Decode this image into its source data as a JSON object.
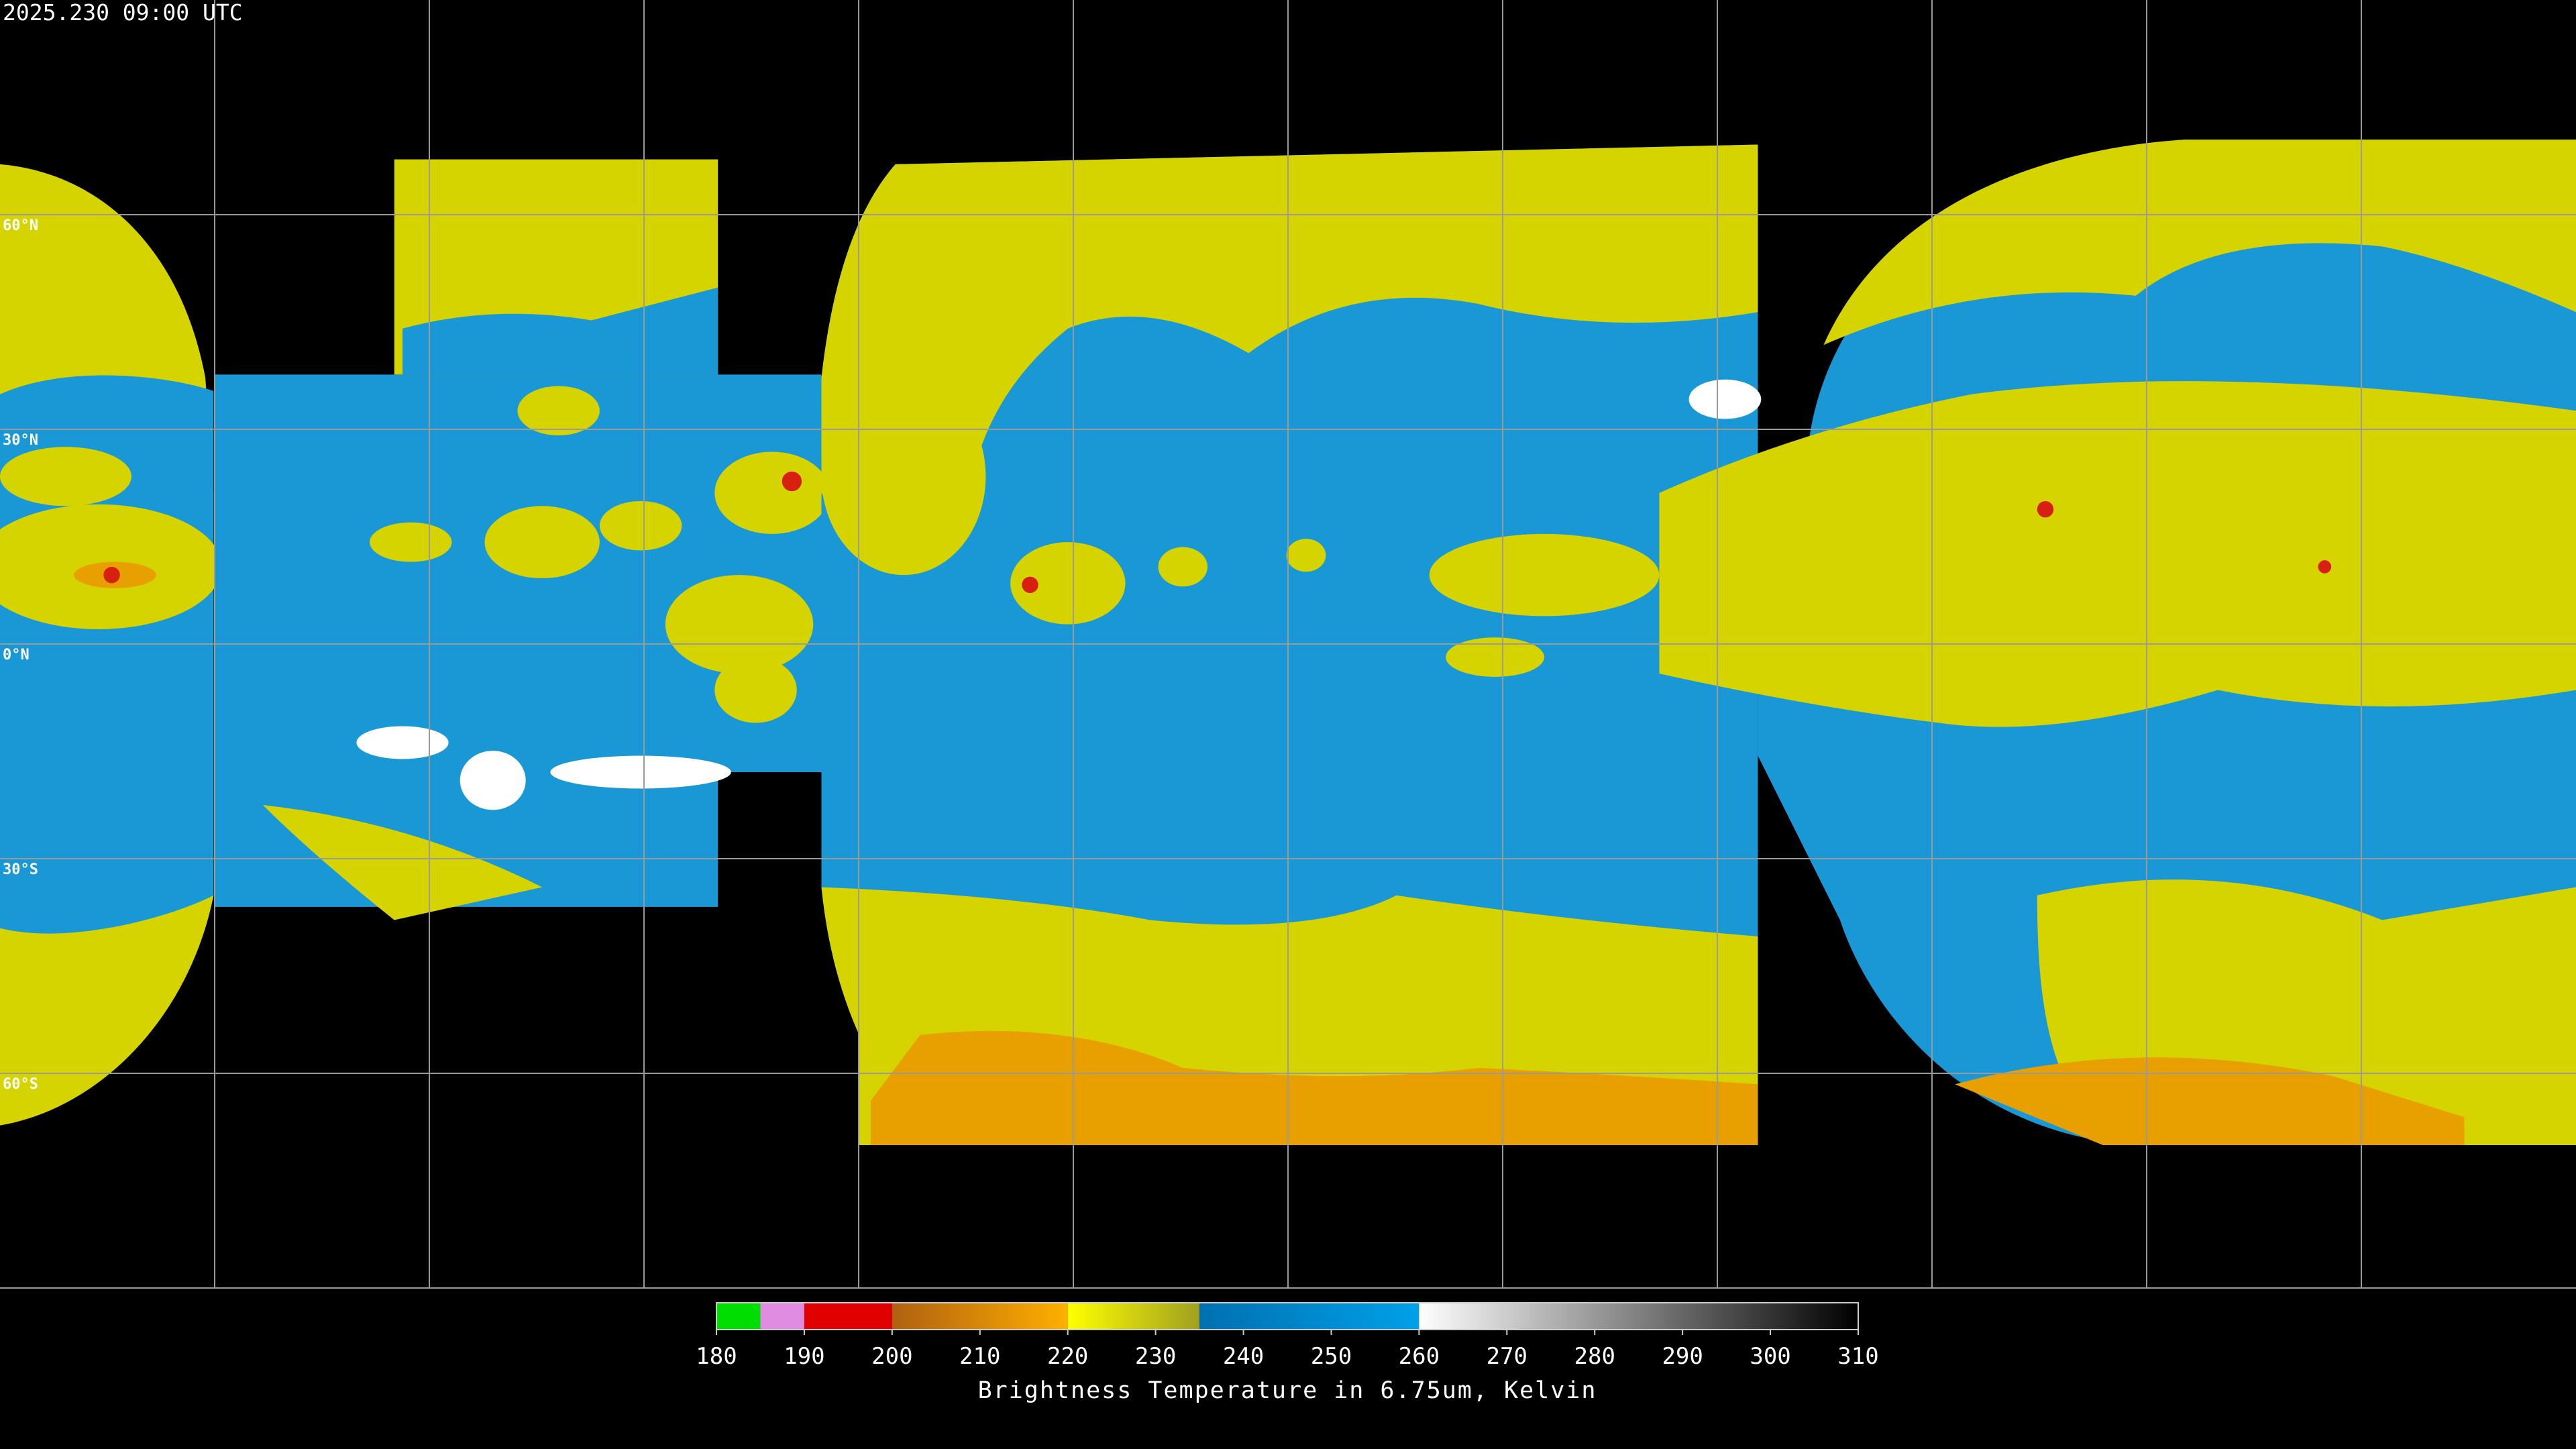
{
  "header": {
    "timestamp": "2025.230 09:00 UTC"
  },
  "map": {
    "lat_labels": [
      "60°N",
      "30°N",
      "0°N",
      "30°S",
      "60°S"
    ]
  },
  "colorbar": {
    "range": [
      180,
      310
    ],
    "ticks": [
      180,
      190,
      200,
      210,
      220,
      230,
      240,
      250,
      260,
      270,
      280,
      290,
      300,
      310
    ],
    "segments": [
      {
        "from": 180,
        "to": 185,
        "colors": [
          "#00dd00",
          "#00dd00"
        ]
      },
      {
        "from": 185,
        "to": 190,
        "colors": [
          "#e08ce0",
          "#e08ce0"
        ]
      },
      {
        "from": 190,
        "to": 200,
        "colors": [
          "#e00000",
          "#e00000"
        ]
      },
      {
        "from": 200,
        "to": 220,
        "colors": [
          "#b06010",
          "#ffb000"
        ]
      },
      {
        "from": 220,
        "to": 235,
        "colors": [
          "#ffff00",
          "#a0a020"
        ]
      },
      {
        "from": 235,
        "to": 260,
        "colors": [
          "#0070b0",
          "#00a0e8"
        ]
      },
      {
        "from": 260,
        "to": 310,
        "colors": [
          "#ffffff",
          "#000000"
        ]
      }
    ],
    "label": "Brightness Temperature in 6.75um, Kelvin"
  }
}
